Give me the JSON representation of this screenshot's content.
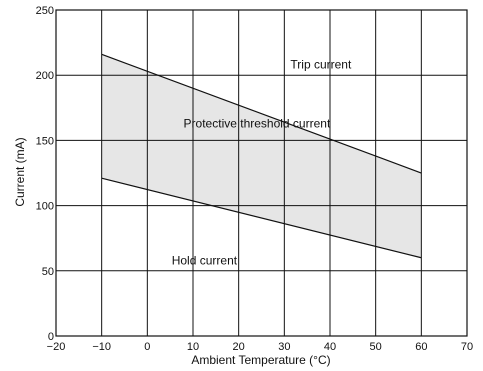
{
  "chart_data": {
    "type": "line",
    "title": "",
    "xlabel": "Ambient Temperature (°C)",
    "ylabel": "Current (mA)",
    "xlim": [
      -20,
      70
    ],
    "ylim": [
      0,
      250
    ],
    "x_ticks": [
      "−20",
      "−10",
      "0",
      "10",
      "20",
      "30",
      "40",
      "50",
      "60",
      "70"
    ],
    "y_ticks": [
      "0",
      "50",
      "100",
      "150",
      "200",
      "250"
    ],
    "grid": true,
    "series": [
      {
        "name": "Trip current",
        "x": [
          -10,
          60
        ],
        "y": [
          216,
          125
        ]
      },
      {
        "name": "Hold current",
        "x": [
          -10,
          60
        ],
        "y": [
          121,
          60
        ]
      }
    ],
    "shaded_region": {
      "between": [
        "Trip current",
        "Hold current"
      ],
      "color": "#e6e6e6"
    },
    "annotations": [
      {
        "text": "Trip current",
        "x": 38,
        "y": 205
      },
      {
        "text": "Protective threshold current",
        "x": 24,
        "y": 160
      },
      {
        "text": "Hold current",
        "x": 12.5,
        "y": 55
      }
    ],
    "colors": {
      "line": "#111111",
      "fill": "#e6e6e6",
      "grid": "#111111"
    }
  }
}
